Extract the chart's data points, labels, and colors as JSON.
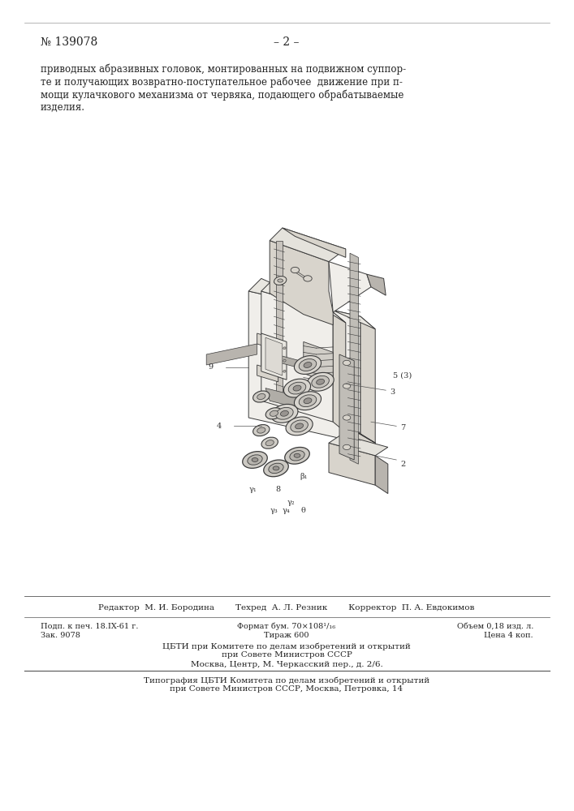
{
  "background_color": "#ffffff",
  "page_width": 7.07,
  "page_height": 10.0,
  "header_number": "№ 139078",
  "header_center": "– 2 –",
  "body_text_lines": [
    "приводных абразивных головок, монтированных на подвижном суппор-",
    "те и получающих возвратно-поступательное рабочее  движение при п-",
    "мощи кулачкового механизма от червяка, подающего обрабатываемые",
    "изделия."
  ],
  "editor_line": "Редактор  М. И. Бородина        Техред  А. Л. Резник        Корректор  П. А. Евдокимов",
  "cbti_line1": "ЦБТИ при Комитете по делам изобретений и открытий",
  "cbti_line2": "при Совете Министров СССР",
  "cbti_line3": "Москва, Центр, М. Черкасский пер., д. 2/6.",
  "typo_line1": "Типография ЦБТИ Комитета по делам изобретений и открытий",
  "typo_line2": "при Совете Министров СССР, Москва, Петровка, 14"
}
